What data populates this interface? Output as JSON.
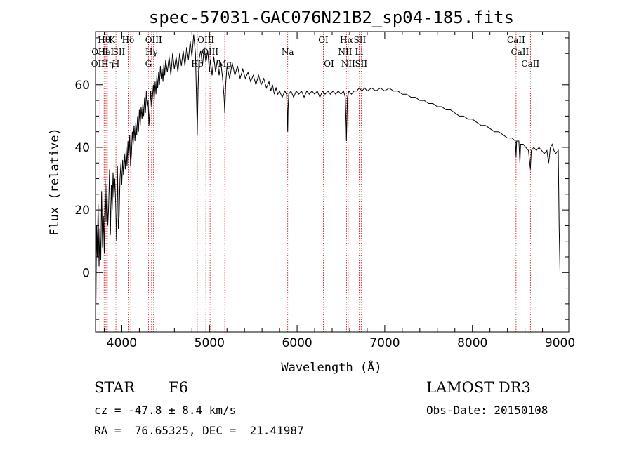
{
  "colors": {
    "axis": "#000000",
    "spectrum": "#000000",
    "line_marker": "#cc0000",
    "background": "#ffffff"
  },
  "info": {
    "object_class": "STAR",
    "subclass": "F6",
    "survey": "LAMOST DR3",
    "redshift": "cz = -47.8 ± 8.4 km/s",
    "obs_date": "Obs-Date: 20150108",
    "coords": "RA =  76.65325, DEC =  21.41987"
  },
  "chart_data": {
    "type": "line",
    "title": "spec-57031-GAC076N21B2_sp04-185.fits",
    "xlabel": "Wavelength (Å)",
    "ylabel": "Flux (relative)",
    "xlim": [
      3700,
      9100
    ],
    "ylim": [
      -19,
      77
    ],
    "grid": false,
    "xticks": [
      4000,
      5000,
      6000,
      7000,
      8000,
      9000
    ],
    "yticks": [
      0,
      20,
      40,
      60
    ],
    "series": [
      {
        "points": [
          [
            3700,
            28
          ],
          [
            3705,
            -10
          ],
          [
            3712,
            15
          ],
          [
            3720,
            5
          ],
          [
            3730,
            22
          ],
          [
            3740,
            2
          ],
          [
            3750,
            14
          ],
          [
            3760,
            4
          ],
          [
            3770,
            26
          ],
          [
            3780,
            8
          ],
          [
            3790,
            18
          ],
          [
            3800,
            6
          ],
          [
            3810,
            30
          ],
          [
            3820,
            16
          ],
          [
            3830,
            28
          ],
          [
            3840,
            15
          ],
          [
            3850,
            21
          ],
          [
            3860,
            33
          ],
          [
            3870,
            12
          ],
          [
            3880,
            28
          ],
          [
            3890,
            20
          ],
          [
            3900,
            32
          ],
          [
            3910,
            24
          ],
          [
            3920,
            30
          ],
          [
            3930,
            22
          ],
          [
            3940,
            10
          ],
          [
            3950,
            34
          ],
          [
            3960,
            14
          ],
          [
            3970,
            18
          ],
          [
            3980,
            30
          ],
          [
            3990,
            35
          ],
          [
            4000,
            28
          ],
          [
            4010,
            36
          ],
          [
            4020,
            31
          ],
          [
            4030,
            38
          ],
          [
            4040,
            33
          ],
          [
            4050,
            40
          ],
          [
            4060,
            34
          ],
          [
            4070,
            42
          ],
          [
            4080,
            36
          ],
          [
            4090,
            44
          ],
          [
            4100,
            34
          ],
          [
            4110,
            38
          ],
          [
            4120,
            45
          ],
          [
            4130,
            41
          ],
          [
            4140,
            47
          ],
          [
            4150,
            42
          ],
          [
            4160,
            48
          ],
          [
            4170,
            44
          ],
          [
            4180,
            50
          ],
          [
            4190,
            45
          ],
          [
            4200,
            52
          ],
          [
            4210,
            47
          ],
          [
            4220,
            53
          ],
          [
            4230,
            49
          ],
          [
            4240,
            54
          ],
          [
            4250,
            50
          ],
          [
            4260,
            56
          ],
          [
            4270,
            51
          ],
          [
            4280,
            58
          ],
          [
            4290,
            53
          ],
          [
            4300,
            55
          ],
          [
            4310,
            47
          ],
          [
            4320,
            52
          ],
          [
            4330,
            58
          ],
          [
            4340,
            53
          ],
          [
            4350,
            56
          ],
          [
            4360,
            60
          ],
          [
            4370,
            55
          ],
          [
            4380,
            61
          ],
          [
            4390,
            57
          ],
          [
            4400,
            63
          ],
          [
            4410,
            59
          ],
          [
            4420,
            64
          ],
          [
            4430,
            60
          ],
          [
            4440,
            66
          ],
          [
            4450,
            62
          ],
          [
            4460,
            65
          ],
          [
            4470,
            61
          ],
          [
            4480,
            67
          ],
          [
            4490,
            63
          ],
          [
            4500,
            68
          ],
          [
            4520,
            64
          ],
          [
            4540,
            69
          ],
          [
            4560,
            63
          ],
          [
            4580,
            70
          ],
          [
            4600,
            65
          ],
          [
            4620,
            69
          ],
          [
            4640,
            64
          ],
          [
            4660,
            70
          ],
          [
            4680,
            66
          ],
          [
            4700,
            71
          ],
          [
            4720,
            66
          ],
          [
            4740,
            72
          ],
          [
            4760,
            68
          ],
          [
            4780,
            74
          ],
          [
            4800,
            69
          ],
          [
            4820,
            76
          ],
          [
            4840,
            70
          ],
          [
            4855,
            52
          ],
          [
            4861,
            44
          ],
          [
            4870,
            58
          ],
          [
            4880,
            68
          ],
          [
            4900,
            71
          ],
          [
            4920,
            66
          ],
          [
            4940,
            72
          ],
          [
            4960,
            67
          ],
          [
            4980,
            71
          ],
          [
            5000,
            64
          ],
          [
            5010,
            68
          ],
          [
            5030,
            63
          ],
          [
            5050,
            69
          ],
          [
            5070,
            64
          ],
          [
            5090,
            68
          ],
          [
            5110,
            63
          ],
          [
            5130,
            67
          ],
          [
            5150,
            62
          ],
          [
            5167,
            56
          ],
          [
            5175,
            51
          ],
          [
            5185,
            60
          ],
          [
            5200,
            66
          ],
          [
            5230,
            62
          ],
          [
            5260,
            67
          ],
          [
            5290,
            63
          ],
          [
            5320,
            66
          ],
          [
            5350,
            62
          ],
          [
            5380,
            65
          ],
          [
            5410,
            62
          ],
          [
            5440,
            64
          ],
          [
            5470,
            61
          ],
          [
            5500,
            63
          ],
          [
            5530,
            60
          ],
          [
            5560,
            63
          ],
          [
            5590,
            60
          ],
          [
            5620,
            62
          ],
          [
            5650,
            59
          ],
          [
            5680,
            61
          ],
          [
            5700,
            58
          ],
          [
            5720,
            60
          ],
          [
            5740,
            57
          ],
          [
            5760,
            59
          ],
          [
            5780,
            57
          ],
          [
            5800,
            58
          ],
          [
            5830,
            56
          ],
          [
            5860,
            58
          ],
          [
            5880,
            57
          ],
          [
            5890,
            50
          ],
          [
            5893,
            45
          ],
          [
            5897,
            52
          ],
          [
            5905,
            57
          ],
          [
            5930,
            58
          ],
          [
            5960,
            56
          ],
          [
            5990,
            58
          ],
          [
            6020,
            57
          ],
          [
            6050,
            58
          ],
          [
            6080,
            56
          ],
          [
            6110,
            58
          ],
          [
            6140,
            57
          ],
          [
            6170,
            58
          ],
          [
            6200,
            57
          ],
          [
            6230,
            58
          ],
          [
            6260,
            56
          ],
          [
            6290,
            58
          ],
          [
            6320,
            57
          ],
          [
            6350,
            58
          ],
          [
            6380,
            57
          ],
          [
            6410,
            58
          ],
          [
            6440,
            57
          ],
          [
            6470,
            58
          ],
          [
            6500,
            57
          ],
          [
            6530,
            58
          ],
          [
            6550,
            56
          ],
          [
            6560,
            46
          ],
          [
            6563,
            42
          ],
          [
            6566,
            46
          ],
          [
            6575,
            56
          ],
          [
            6590,
            58
          ],
          [
            6620,
            57
          ],
          [
            6650,
            58
          ],
          [
            6680,
            58
          ],
          [
            6710,
            59
          ],
          [
            6740,
            58
          ],
          [
            6770,
            59
          ],
          [
            6800,
            58
          ],
          [
            6850,
            59
          ],
          [
            6900,
            58
          ],
          [
            6950,
            59
          ],
          [
            7000,
            58
          ],
          [
            7050,
            59
          ],
          [
            7100,
            58
          ],
          [
            7150,
            58
          ],
          [
            7200,
            57
          ],
          [
            7250,
            57
          ],
          [
            7300,
            56
          ],
          [
            7350,
            56
          ],
          [
            7400,
            55
          ],
          [
            7450,
            55
          ],
          [
            7500,
            54
          ],
          [
            7550,
            54
          ],
          [
            7600,
            53
          ],
          [
            7650,
            53
          ],
          [
            7700,
            52
          ],
          [
            7750,
            52
          ],
          [
            7800,
            51
          ],
          [
            7850,
            50
          ],
          [
            7900,
            50
          ],
          [
            7950,
            49
          ],
          [
            8000,
            49
          ],
          [
            8050,
            48
          ],
          [
            8100,
            47
          ],
          [
            8150,
            47
          ],
          [
            8200,
            46
          ],
          [
            8250,
            45
          ],
          [
            8300,
            45
          ],
          [
            8350,
            44
          ],
          [
            8400,
            43
          ],
          [
            8450,
            43
          ],
          [
            8490,
            42
          ],
          [
            8498,
            37
          ],
          [
            8505,
            42
          ],
          [
            8530,
            42
          ],
          [
            8542,
            35
          ],
          [
            8550,
            41
          ],
          [
            8580,
            41
          ],
          [
            8610,
            40
          ],
          [
            8640,
            39
          ],
          [
            8662,
            33
          ],
          [
            8672,
            39
          ],
          [
            8700,
            40
          ],
          [
            8730,
            39
          ],
          [
            8760,
            40
          ],
          [
            8790,
            39
          ],
          [
            8820,
            38
          ],
          [
            8850,
            39
          ],
          [
            8870,
            35
          ],
          [
            8890,
            40
          ],
          [
            8910,
            41
          ],
          [
            8930,
            39
          ],
          [
            8950,
            38
          ],
          [
            8980,
            39
          ],
          [
            8990,
            14
          ],
          [
            9000,
            0
          ]
        ]
      }
    ],
    "lines": [
      {
        "wave": 3727,
        "label": "OII",
        "row": 2
      },
      {
        "wave": 3750,
        "label": "OIII",
        "row": 1
      },
      {
        "wave": 3798,
        "label": "Hθ",
        "row": 0
      },
      {
        "wave": 3820,
        "label": "HeI",
        "row": 1
      },
      {
        "wave": 3835,
        "label": "Hη",
        "row": 2
      },
      {
        "wave": 3889,
        "label": "K",
        "row": 0
      },
      {
        "wave": 3933,
        "label": "H",
        "row": 2
      },
      {
        "wave": 3968,
        "label": "SII",
        "row": 1
      },
      {
        "wave": 4072,
        "label": "Hδ",
        "row": 0
      },
      {
        "wave": 4102,
        "label": "",
        "row": -1
      },
      {
        "wave": 4304,
        "label": "G",
        "row": 2
      },
      {
        "wave": 4340,
        "label": "Hγ",
        "row": 1
      },
      {
        "wave": 4363,
        "label": "OIII",
        "row": 0
      },
      {
        "wave": 4861,
        "label": "Hβ",
        "row": 2
      },
      {
        "wave": 4959,
        "label": "OIII",
        "row": 0
      },
      {
        "wave": 5007,
        "label": "OIII",
        "row": 1
      },
      {
        "wave": 5175,
        "label": "Mg",
        "row": 2
      },
      {
        "wave": 5893,
        "label": "Na",
        "row": 1
      },
      {
        "wave": 6300,
        "label": "OI",
        "row": 0
      },
      {
        "wave": 6364,
        "label": "OI",
        "row": 2
      },
      {
        "wave": 6548,
        "label": "NII",
        "row": 1
      },
      {
        "wave": 6563,
        "label": "Hα",
        "row": 0
      },
      {
        "wave": 6583,
        "label": "NII",
        "row": 2
      },
      {
        "wave": 6708,
        "label": "Li",
        "row": 1
      },
      {
        "wave": 6716,
        "label": "SII",
        "row": 0
      },
      {
        "wave": 6731,
        "label": "SII",
        "row": 2
      },
      {
        "wave": 8498,
        "label": "CaII",
        "row": 0
      },
      {
        "wave": 8542,
        "label": "CaII",
        "row": 1
      },
      {
        "wave": 8662,
        "label": "CaII",
        "row": 2
      }
    ]
  }
}
